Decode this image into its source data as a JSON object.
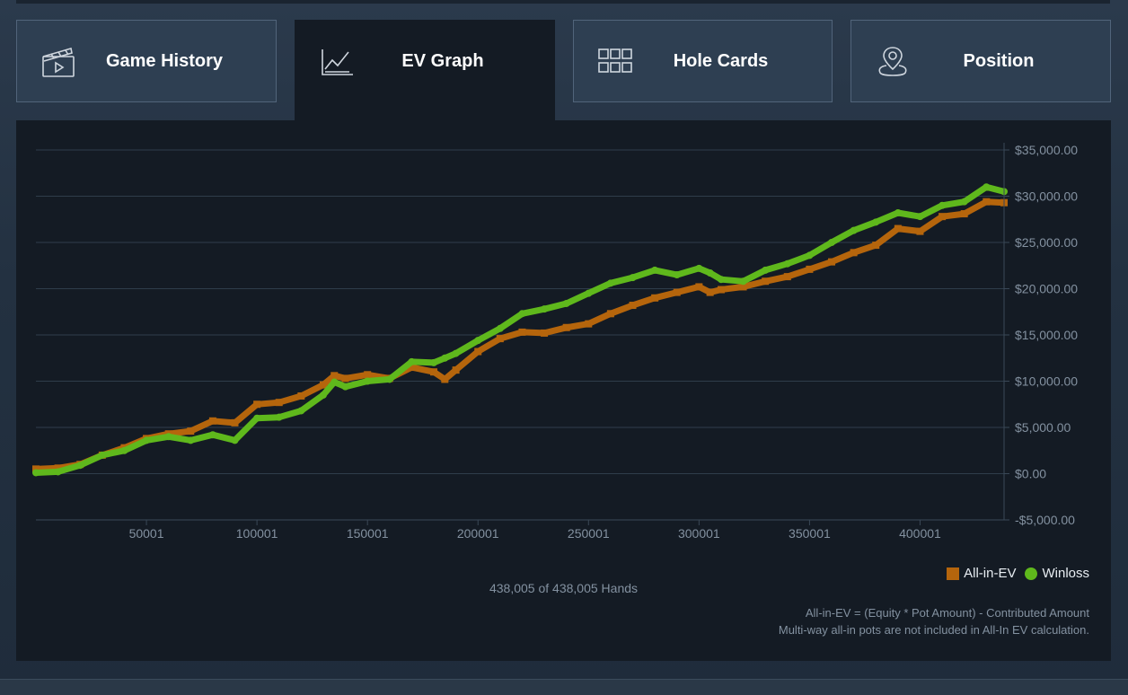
{
  "tabs": [
    {
      "label": "Game History",
      "icon": "clapperboard-icon",
      "active": false
    },
    {
      "label": "EV Graph",
      "icon": "line-chart-icon",
      "active": true
    },
    {
      "label": "Hole Cards",
      "icon": "grid-icon",
      "active": false
    },
    {
      "label": "Position",
      "icon": "map-pin-icon",
      "active": false
    }
  ],
  "footer": {
    "hands_label": "438,005 of 438,005 Hands",
    "note_line1": "All-in-EV = (Equity * Pot Amount) - Contributed Amount",
    "note_line2": "Multi-way all-in pots are not included in All-In EV calculation."
  },
  "colors": {
    "allin_ev": "#b5650c",
    "winloss": "#5fb81c"
  },
  "chart_data": {
    "type": "line",
    "title": "",
    "xlabel": "",
    "ylabel": "",
    "xlim": [
      1,
      438005
    ],
    "ylim": [
      -5000,
      35000
    ],
    "x_ticks": [
      50001,
      100001,
      150001,
      200001,
      250001,
      300001,
      350001,
      400001
    ],
    "y_ticks": [
      -5000,
      0,
      5000,
      10000,
      15000,
      20000,
      25000,
      30000,
      35000
    ],
    "y_tick_labels": [
      "-$5,000.00",
      "$0.00",
      "$5,000.00",
      "$10,000.00",
      "$15,000.00",
      "$20,000.00",
      "$25,000.00",
      "$30,000.00",
      "$35,000.00"
    ],
    "grid": true,
    "legend_position": "bottom-right",
    "series": [
      {
        "name": "All-in-EV",
        "marker": "square",
        "x": [
          1,
          10000,
          20000,
          30000,
          40000,
          50000,
          60000,
          70000,
          80000,
          90000,
          100000,
          110000,
          120000,
          130000,
          135000,
          140000,
          150000,
          160000,
          170000,
          180000,
          185000,
          190000,
          200000,
          210000,
          220000,
          230000,
          240000,
          250000,
          260000,
          270000,
          280000,
          290000,
          300000,
          305000,
          310000,
          320000,
          330000,
          340000,
          350000,
          360000,
          370000,
          380000,
          390000,
          400000,
          410000,
          420000,
          430000,
          438005
        ],
        "values": [
          500,
          600,
          1000,
          2000,
          2800,
          3800,
          4300,
          4600,
          5700,
          5500,
          7500,
          7700,
          8400,
          9600,
          10600,
          10300,
          10700,
          10300,
          11500,
          11000,
          10200,
          11200,
          13200,
          14600,
          15300,
          15200,
          15800,
          16200,
          17300,
          18200,
          19000,
          19600,
          20200,
          19600,
          19900,
          20200,
          20800,
          21300,
          22100,
          22900,
          23900,
          24700,
          26500,
          26200,
          27800,
          28100,
          29400,
          29300
        ]
      },
      {
        "name": "Winloss",
        "marker": "circle",
        "x": [
          1,
          10000,
          20000,
          30000,
          40000,
          50000,
          60000,
          70000,
          80000,
          90000,
          100000,
          110000,
          120000,
          130000,
          135000,
          140000,
          150000,
          160000,
          170000,
          180000,
          185000,
          190000,
          200000,
          210000,
          220000,
          230000,
          240000,
          250000,
          260000,
          270000,
          280000,
          290000,
          300000,
          305000,
          310000,
          320000,
          330000,
          340000,
          350000,
          360000,
          370000,
          380000,
          390000,
          400000,
          410000,
          420000,
          430000,
          438005
        ],
        "values": [
          100,
          200,
          900,
          2000,
          2500,
          3600,
          4000,
          3600,
          4200,
          3600,
          6000,
          6100,
          6800,
          8500,
          9900,
          9400,
          10000,
          10200,
          12100,
          12000,
          12500,
          13000,
          14400,
          15700,
          17300,
          17800,
          18400,
          19500,
          20600,
          21200,
          22000,
          21500,
          22200,
          21700,
          21000,
          20800,
          22000,
          22700,
          23600,
          25000,
          26300,
          27200,
          28200,
          27800,
          29000,
          29400,
          31000,
          30500
        ]
      }
    ]
  }
}
